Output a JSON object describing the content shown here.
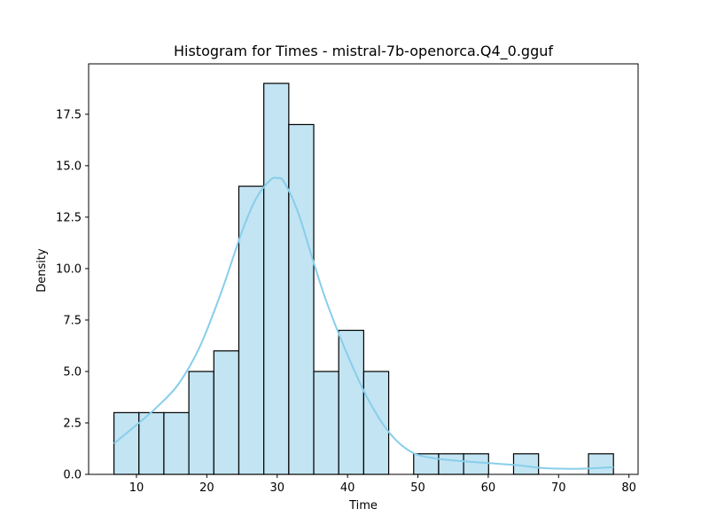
{
  "chart_data": {
    "type": "bar",
    "title": "Histogram for Times - mistral-7b-openorca.Q4_0.gguf",
    "xlabel": "Time",
    "ylabel": "Density",
    "xlim": [
      3.2,
      81.3
    ],
    "ylim": [
      0,
      19.95
    ],
    "grid": false,
    "legend": "none",
    "colors": {
      "bar_fill": "#c3e4f2",
      "bar_edge": "#000000",
      "kde_line": "#87ceeb",
      "axes": "#000000"
    },
    "x_ticks": [
      10,
      20,
      30,
      40,
      50,
      60,
      70,
      80
    ],
    "x_tick_labels": [
      "10",
      "20",
      "30",
      "40",
      "50",
      "60",
      "70",
      "80"
    ],
    "y_ticks": [
      0,
      2.5,
      5,
      7.5,
      10,
      12.5,
      15,
      17.5
    ],
    "y_tick_labels": [
      "0.0",
      "2.5",
      "5.0",
      "7.5",
      "10.0",
      "12.5",
      "15.0",
      "17.5"
    ],
    "bins": [
      {
        "x0": 6.8,
        "x1": 10.35,
        "value": 3
      },
      {
        "x0": 10.35,
        "x1": 13.9,
        "value": 3
      },
      {
        "x0": 13.9,
        "x1": 17.45,
        "value": 3
      },
      {
        "x0": 17.45,
        "x1": 21.0,
        "value": 5
      },
      {
        "x0": 21.0,
        "x1": 24.55,
        "value": 6
      },
      {
        "x0": 24.55,
        "x1": 28.1,
        "value": 14
      },
      {
        "x0": 28.1,
        "x1": 31.65,
        "value": 19
      },
      {
        "x0": 31.65,
        "x1": 35.2,
        "value": 17
      },
      {
        "x0": 35.2,
        "x1": 38.75,
        "value": 5
      },
      {
        "x0": 38.75,
        "x1": 42.3,
        "value": 7
      },
      {
        "x0": 42.3,
        "x1": 45.85,
        "value": 5
      },
      {
        "x0": 45.85,
        "x1": 49.4,
        "value": 0
      },
      {
        "x0": 49.4,
        "x1": 52.95,
        "value": 1
      },
      {
        "x0": 52.95,
        "x1": 56.5,
        "value": 1
      },
      {
        "x0": 56.5,
        "x1": 60.05,
        "value": 1
      },
      {
        "x0": 60.05,
        "x1": 63.6,
        "value": 0
      },
      {
        "x0": 63.6,
        "x1": 67.15,
        "value": 1
      },
      {
        "x0": 67.15,
        "x1": 70.7,
        "value": 0
      },
      {
        "x0": 70.7,
        "x1": 74.25,
        "value": 0
      },
      {
        "x0": 74.25,
        "x1": 77.8,
        "value": 1
      }
    ],
    "kde": {
      "x": [
        6.8,
        10,
        13,
        16,
        19,
        22,
        25,
        27,
        29,
        30,
        31,
        33,
        35,
        37,
        40,
        43,
        46,
        49,
        52,
        56,
        60,
        64,
        68,
        72,
        75,
        77.8
      ],
      "y": [
        1.5,
        2.4,
        3.3,
        4.4,
        6.2,
        8.8,
        11.8,
        13.4,
        14.3,
        14.4,
        14.2,
        12.7,
        10.5,
        8.4,
        5.8,
        3.6,
        2.0,
        1.1,
        0.8,
        0.65,
        0.55,
        0.45,
        0.3,
        0.27,
        0.3,
        0.35
      ]
    }
  }
}
